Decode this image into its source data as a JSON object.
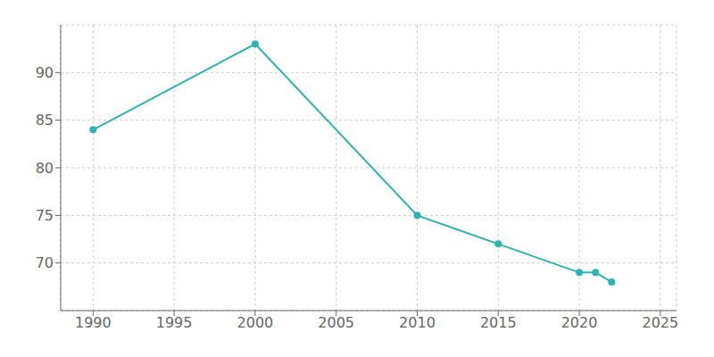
{
  "chart_data": {
    "type": "line",
    "x": [
      1990,
      2000,
      2010,
      2015,
      2020,
      2021,
      2022
    ],
    "values": [
      84,
      93,
      75,
      72,
      69,
      69,
      68
    ],
    "color": "#2ab5b5",
    "marker": "circle",
    "xlim": [
      1988,
      2026
    ],
    "xticks": [
      1990,
      1995,
      2000,
      2005,
      2010,
      2015,
      2020,
      2025
    ],
    "ylim": [
      65,
      95
    ],
    "yticks": [
      70,
      75,
      80,
      85,
      90
    ],
    "grid": true
  }
}
